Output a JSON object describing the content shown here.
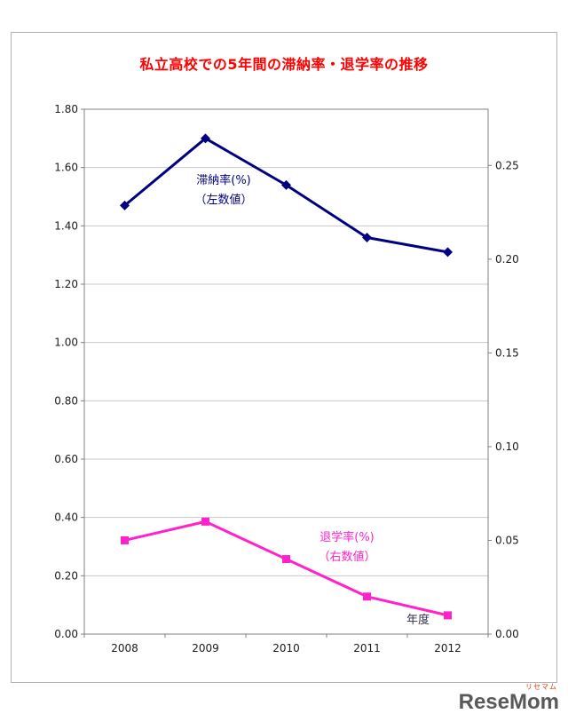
{
  "page": {
    "logo_text": "ReseMom",
    "logo_ruby": "リセマム"
  },
  "chart_data": {
    "type": "line",
    "title": "私立高校での5年間の滞納率・退学率の推移",
    "categories": [
      "2008",
      "2009",
      "2010",
      "2011",
      "2012"
    ],
    "series": [
      {
        "name": "滞納率(%)",
        "axis": "left",
        "color": "#000080",
        "marker": "diamond",
        "values": [
          1.47,
          1.7,
          1.54,
          1.36,
          1.31
        ],
        "label_lines": [
          "滞納率(%)",
          "（左数値）"
        ]
      },
      {
        "name": "退学率(%)",
        "axis": "right",
        "color": "#ff22cc",
        "marker": "square",
        "values": [
          0.05,
          0.06,
          0.04,
          0.02,
          0.01
        ],
        "label_lines": [
          "退学率(%)",
          "（右数値）"
        ]
      }
    ],
    "left_axis": {
      "min": 0,
      "max": 1.8,
      "tick": 0.2,
      "labels": [
        "0.00",
        "0.20",
        "0.40",
        "0.60",
        "0.80",
        "1.00",
        "1.20",
        "1.40",
        "1.60",
        "1.80"
      ]
    },
    "right_axis": {
      "min": 0,
      "max": 0.28,
      "tick": 0.05,
      "labels": [
        "0.00",
        "0.05",
        "0.10",
        "0.15",
        "0.20",
        "0.25"
      ]
    },
    "xlabel": "年度",
    "grid": true,
    "legend_position": "inline-annotations"
  }
}
